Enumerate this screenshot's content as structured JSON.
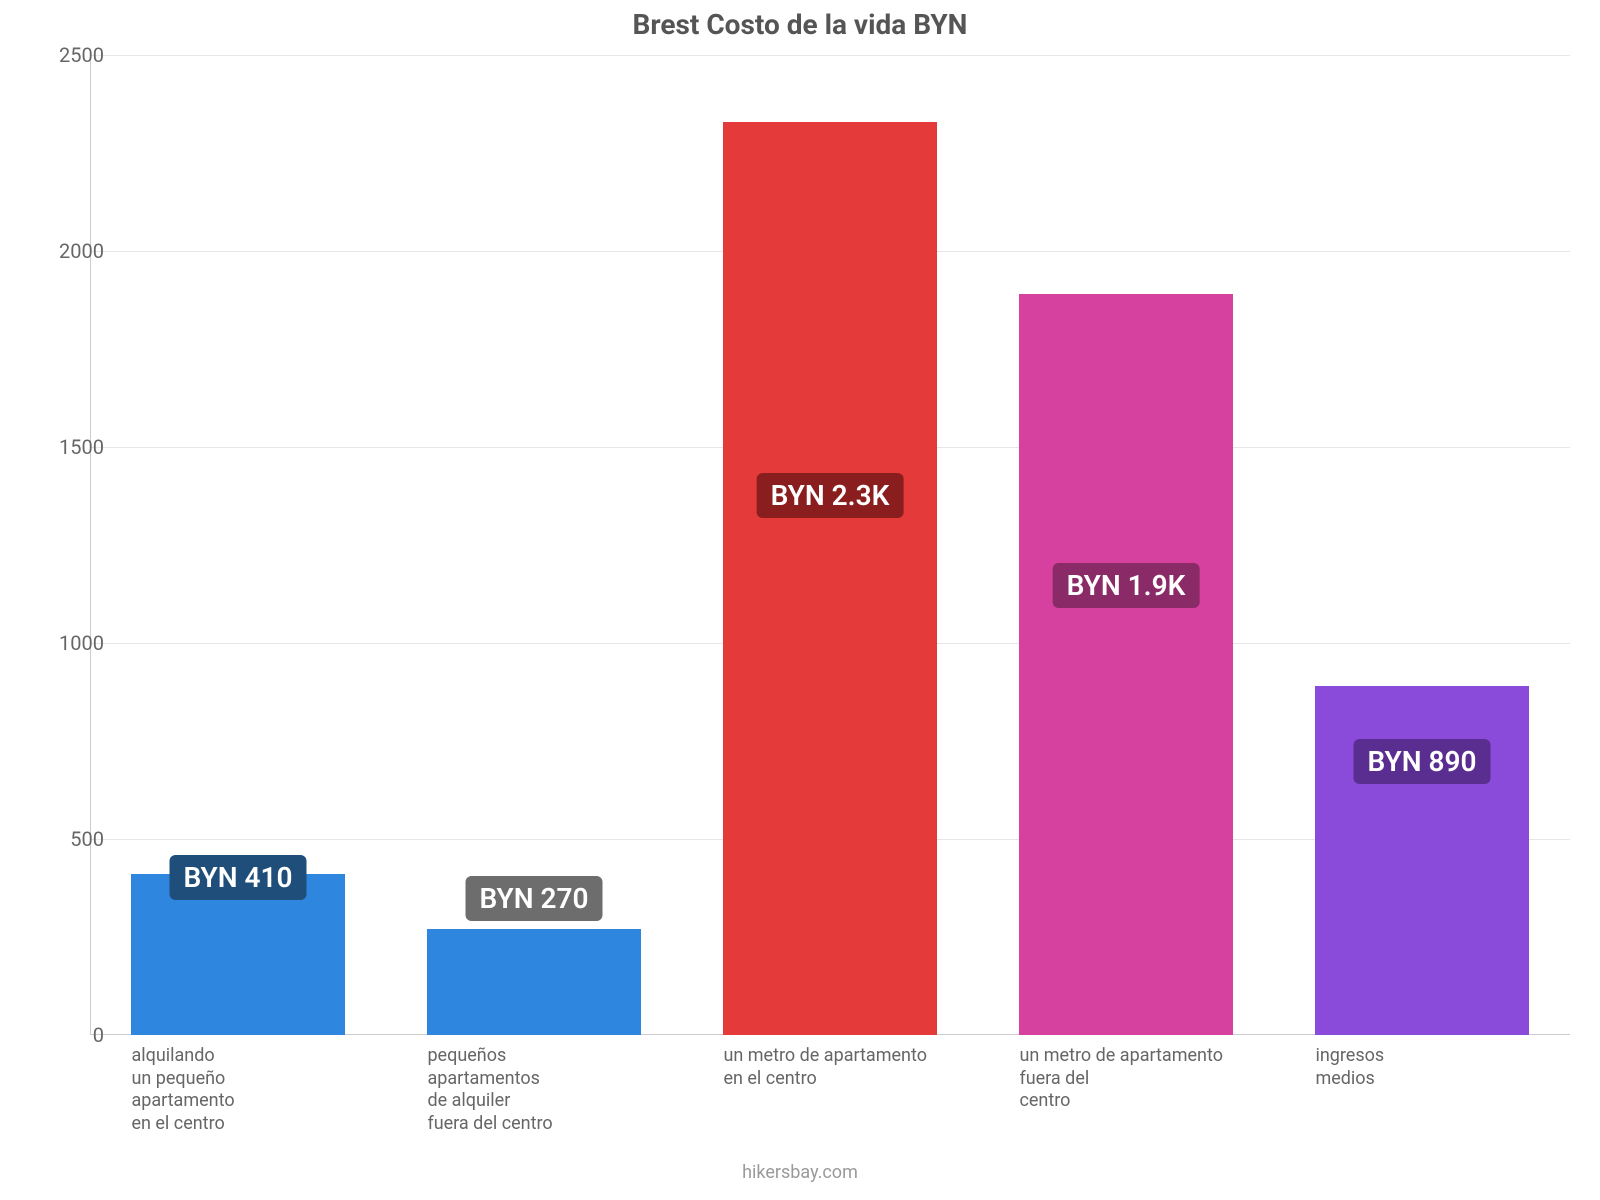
{
  "chart": {
    "type": "bar",
    "title": "Brest Costo de la vida BYN",
    "title_fontsize": 28,
    "title_color": "#555555",
    "background_color": "#ffffff",
    "axis_color": "#cccccc",
    "grid_color": "#e6e6e6",
    "ylim": [
      0,
      2500
    ],
    "ytick_step": 500,
    "yticks": [
      0,
      500,
      1000,
      1500,
      2000,
      2500
    ],
    "tick_fontsize": 20,
    "tick_color": "#666666",
    "xlabel_fontsize": 18,
    "xlabel_color": "#666666",
    "bar_width": 0.72,
    "value_label_fontsize": 28,
    "categories": [
      "alquilando\nun pequeño\napartamento\nen el centro",
      "pequeños\napartamentos\nde alquiler\nfuera del centro",
      "un metro de apartamento\nen el centro",
      "un metro de apartamento\nfuera del\ncentro",
      "ingresos\nmedios"
    ],
    "values": [
      410,
      270,
      2330,
      1890,
      890
    ],
    "value_labels": [
      "BYN 410",
      "BYN 270",
      "BYN 2.3K",
      "BYN 1.9K",
      "BYN 890"
    ],
    "bar_colors": [
      "#2e86de",
      "#2e86de",
      "#e43a3a",
      "#d6409f",
      "#8a4bdb"
    ],
    "badge_bg_colors": [
      "#1f4e7a",
      "#6d6d6d",
      "#8a1e1e",
      "#8a2a67",
      "#5a2e91"
    ],
    "label_heights": [
      345,
      291,
      1320,
      1090,
      640
    ],
    "credit": "hikersbay.com",
    "credit_fontsize": 18,
    "credit_color": "#9a9a9a"
  }
}
